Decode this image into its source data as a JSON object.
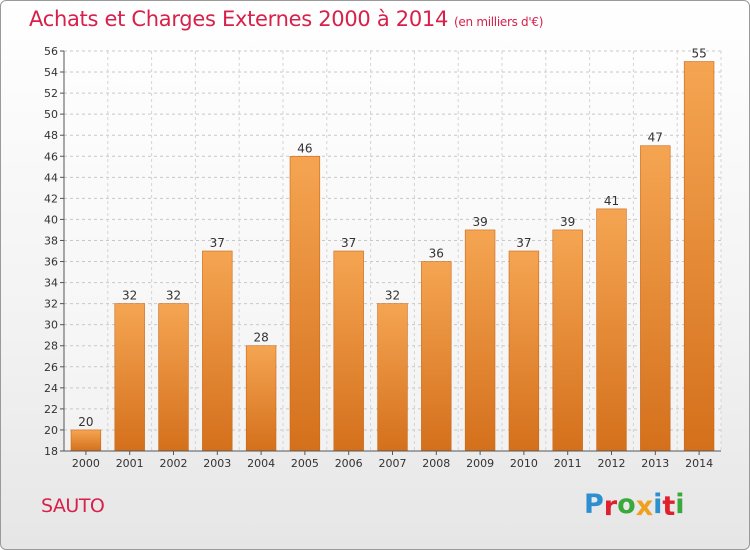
{
  "header": {
    "title": "Achats et Charges Externes 2000 à 2014",
    "subtitle": "(en milliers d'€)"
  },
  "footer": {
    "location": "SAUTO",
    "brand": "Proxiti",
    "brand_letters": [
      "P",
      "r",
      "o",
      "x",
      "i",
      "t",
      "i"
    ],
    "brand_colors": [
      "#2e8fd0",
      "#e0202f",
      "#3aa83a",
      "#f0a020",
      "#2e8fd0",
      "#e0202f",
      "#3aa83a"
    ]
  },
  "colors": {
    "title": "#d8204a",
    "bar_light": "#f5a552",
    "bar_dark": "#d4701c"
  },
  "chart_data": {
    "type": "bar",
    "title": "Achats et Charges Externes 2000 à 2014",
    "subtitle": "(en milliers d'€)",
    "xlabel": "",
    "ylabel": "",
    "categories": [
      "2000",
      "2001",
      "2002",
      "2003",
      "2004",
      "2005",
      "2006",
      "2007",
      "2008",
      "2009",
      "2010",
      "2011",
      "2012",
      "2013",
      "2014"
    ],
    "values": [
      20,
      32,
      32,
      37,
      28,
      46,
      37,
      32,
      36,
      39,
      37,
      39,
      41,
      47,
      55
    ],
    "ylim": [
      18,
      56
    ],
    "ytick_step": 2,
    "grid": true
  }
}
